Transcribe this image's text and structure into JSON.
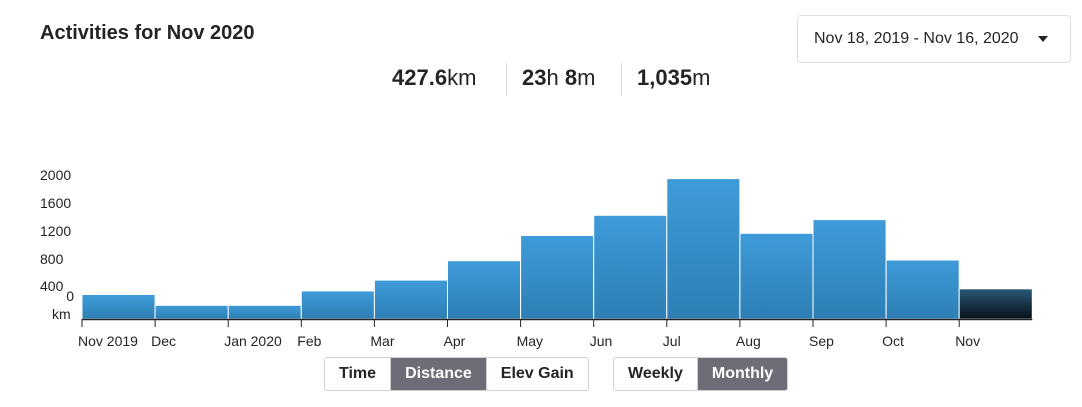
{
  "header": {
    "title": "Activities for Nov 2020"
  },
  "date_range": {
    "selected": "Nov 18, 2019 - Nov 16, 2020",
    "icon": "caret-down-icon"
  },
  "stats": {
    "distance": {
      "value": "427.6",
      "unit": "km"
    },
    "time": {
      "h_value": "23",
      "h_unit": "h",
      "m_value": "8",
      "m_unit": "m"
    },
    "elevation": {
      "value": "1,035",
      "unit": "m"
    }
  },
  "chart_data": {
    "type": "bar",
    "categories": [
      "Nov 2019",
      "Dec",
      "Jan 2020",
      "Feb",
      "Mar",
      "Apr",
      "May",
      "Jun",
      "Jul",
      "Aug",
      "Sep",
      "Oct",
      "Nov"
    ],
    "values": [
      340,
      190,
      190,
      390,
      540,
      810,
      1160,
      1440,
      1950,
      1190,
      1380,
      820,
      420
    ],
    "ylim": [
      0,
      2000
    ],
    "yticks": [
      "2000",
      "1600",
      "1200",
      "800",
      "400",
      "0"
    ],
    "yunit": "km",
    "colors": {
      "bar": "#3f9bd9",
      "bar_dark": "#2d7fb4",
      "current_top": "#2c5a78",
      "current_bottom": "#061018",
      "axis": "#242428"
    }
  },
  "metric_toggle": {
    "items": [
      {
        "label": "Time",
        "active": false
      },
      {
        "label": "Distance",
        "active": true
      },
      {
        "label": "Elev Gain",
        "active": false
      }
    ]
  },
  "period_toggle": {
    "items": [
      {
        "label": "Weekly",
        "active": false
      },
      {
        "label": "Monthly",
        "active": true
      }
    ]
  }
}
